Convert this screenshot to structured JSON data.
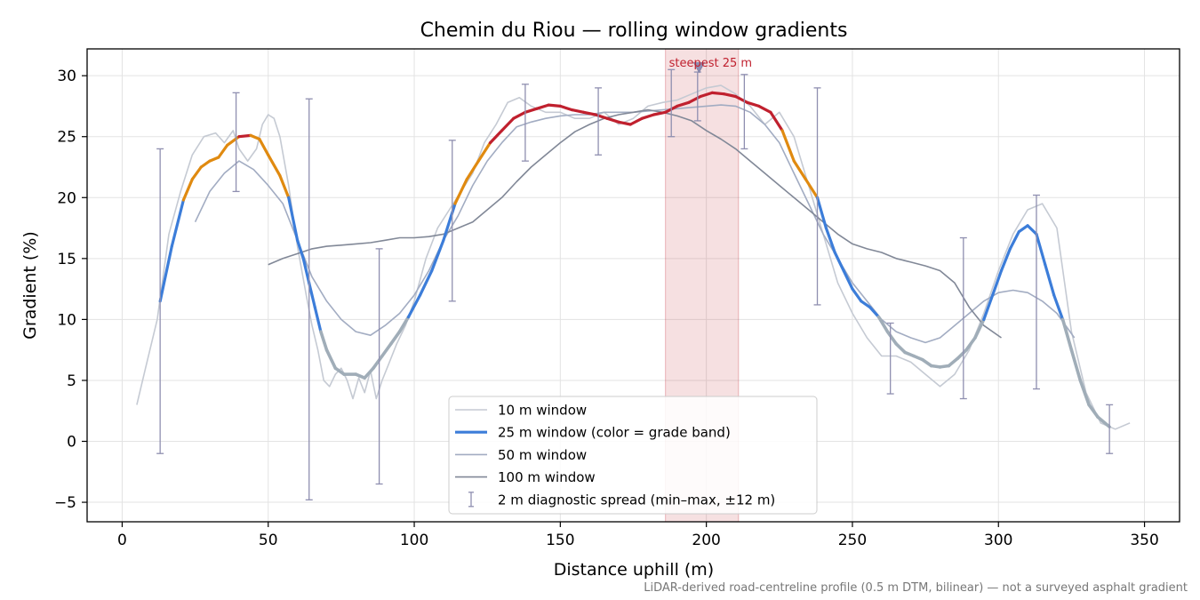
{
  "chart_data": {
    "type": "line",
    "title": "Chemin du Riou — rolling window gradients",
    "xlabel": "Distance uphill (m)",
    "ylabel": "Gradient (%)",
    "xlim": [
      -12,
      362
    ],
    "ylim": [
      -6.6,
      32.2
    ],
    "xticks": [
      0,
      50,
      100,
      150,
      200,
      250,
      300,
      350
    ],
    "yticks": [
      -5,
      0,
      5,
      10,
      15,
      20,
      25,
      30
    ],
    "grid": true,
    "legend_position": "bottom-center",
    "footnote": "LiDAR-derived road-centreline profile (0.5 m DTM, bilinear) — not a surveyed asphalt gradient",
    "annotation": {
      "label": "steepest 25 m",
      "x_range": [
        186,
        211
      ],
      "marker_x": 197.5,
      "marker_y": 30.7
    },
    "band_colors": {
      "<10%": "#a0adb8",
      "10-20%": "#3c7dd9",
      "20-25%": "#e08a10",
      ">=25%": "#c0202e"
    },
    "series": [
      {
        "name": "10 m window",
        "color": "#c5cad3",
        "x": [
          5,
          8,
          12,
          16,
          20,
          24,
          28,
          32,
          35,
          38,
          40,
          43,
          46,
          48,
          50,
          52,
          54,
          57,
          60,
          63,
          65,
          67,
          69,
          71,
          73,
          75,
          77,
          79,
          81,
          83,
          85,
          87,
          89,
          91,
          94,
          97,
          100,
          104,
          108,
          112,
          116,
          120,
          124,
          128,
          132,
          136,
          140,
          145,
          150,
          155,
          160,
          165,
          170,
          175,
          180,
          185,
          190,
          195,
          200,
          205,
          210,
          215,
          220,
          225,
          230,
          235,
          240,
          245,
          250,
          255,
          260,
          265,
          270,
          275,
          280,
          285,
          290,
          295,
          300,
          305,
          310,
          315,
          320,
          325,
          330,
          335,
          340,
          345
        ],
        "y": [
          3.0,
          6.0,
          10.0,
          17.0,
          20.5,
          23.5,
          25.0,
          25.3,
          24.5,
          25.5,
          24.0,
          23.0,
          24.0,
          26.0,
          26.8,
          26.5,
          25.0,
          21.0,
          16.0,
          12.0,
          9.5,
          7.5,
          5.0,
          4.5,
          5.5,
          6.0,
          5.0,
          3.5,
          5.2,
          4.0,
          5.8,
          3.5,
          5.0,
          6.2,
          8.0,
          9.5,
          11.5,
          15.0,
          17.5,
          19.0,
          20.5,
          22.0,
          24.5,
          26.0,
          27.8,
          28.2,
          27.5,
          27.0,
          27.0,
          26.5,
          26.5,
          27.0,
          26.0,
          26.5,
          27.5,
          27.8,
          28.0,
          28.5,
          29.0,
          29.2,
          28.5,
          27.5,
          26.0,
          27.0,
          25.0,
          21.0,
          17.0,
          13.0,
          10.5,
          8.5,
          7.0,
          7.0,
          6.5,
          5.5,
          4.5,
          5.5,
          7.5,
          10.5,
          14.0,
          17.0,
          19.0,
          19.5,
          17.5,
          9.0,
          4.0,
          1.5,
          1.0,
          1.5
        ]
      },
      {
        "name": "25 m window (color = grade band)",
        "x": [
          13,
          17,
          21,
          24,
          27,
          30,
          33,
          36,
          40,
          44,
          47,
          50,
          54,
          57,
          60,
          62,
          64,
          66,
          68,
          70,
          73,
          76,
          80,
          83,
          86,
          89,
          92,
          95,
          98,
          102,
          106,
          110,
          114,
          118,
          122,
          126,
          130,
          134,
          138,
          142,
          146,
          150,
          154,
          158,
          162,
          166,
          170,
          174,
          178,
          182,
          186,
          190,
          194,
          198,
          202,
          206,
          210,
          214,
          218,
          222,
          226,
          230,
          234,
          238,
          241,
          244,
          247,
          250,
          253,
          256,
          259,
          262,
          265,
          268,
          271,
          274,
          277,
          280,
          283,
          286,
          289,
          292,
          295,
          298,
          301,
          304,
          307,
          310,
          313,
          316,
          319,
          322,
          325,
          328,
          331,
          334,
          338
        ],
        "y": [
          11.5,
          16.0,
          19.8,
          21.5,
          22.5,
          23.0,
          23.3,
          24.3,
          25.0,
          25.1,
          24.8,
          23.5,
          21.8,
          20.0,
          16.5,
          15.0,
          13.0,
          11.0,
          9.0,
          7.5,
          6.0,
          5.5,
          5.5,
          5.2,
          6.0,
          7.0,
          8.0,
          9.0,
          10.2,
          12.0,
          14.0,
          16.5,
          19.5,
          21.5,
          23.0,
          24.5,
          25.5,
          26.5,
          27.0,
          27.3,
          27.6,
          27.5,
          27.2,
          27.0,
          26.8,
          26.5,
          26.2,
          26.0,
          26.5,
          26.8,
          27.0,
          27.5,
          27.8,
          28.3,
          28.6,
          28.5,
          28.3,
          27.8,
          27.5,
          27.0,
          25.5,
          23.0,
          21.5,
          20.0,
          17.5,
          15.5,
          14.0,
          12.5,
          11.5,
          11.0,
          10.2,
          9.0,
          8.0,
          7.3,
          7.0,
          6.7,
          6.2,
          6.1,
          6.2,
          6.8,
          7.5,
          8.5,
          10.0,
          12.0,
          14.0,
          15.8,
          17.2,
          17.7,
          17.0,
          14.5,
          12.0,
          10.0,
          7.5,
          5.0,
          3.0,
          2.0,
          1.2
        ]
      },
      {
        "name": "50 m window",
        "color": "#a2acc2",
        "x": [
          25,
          30,
          35,
          40,
          45,
          50,
          55,
          60,
          65,
          70,
          75,
          80,
          85,
          90,
          95,
          100,
          105,
          110,
          115,
          120,
          125,
          130,
          135,
          140,
          145,
          150,
          155,
          160,
          165,
          170,
          175,
          180,
          185,
          190,
          195,
          200,
          205,
          210,
          215,
          220,
          225,
          230,
          235,
          240,
          245,
          250,
          255,
          260,
          265,
          270,
          275,
          280,
          285,
          290,
          295,
          300,
          305,
          310,
          315,
          320,
          326
        ],
        "y": [
          18.0,
          20.5,
          22.0,
          23.0,
          22.3,
          21.0,
          19.5,
          16.5,
          13.5,
          11.5,
          10.0,
          9.0,
          8.7,
          9.5,
          10.5,
          12.0,
          14.0,
          16.5,
          18.5,
          21.0,
          23.0,
          24.5,
          25.8,
          26.2,
          26.5,
          26.7,
          26.8,
          26.8,
          27.0,
          27.0,
          27.0,
          27.1,
          27.2,
          27.3,
          27.4,
          27.5,
          27.6,
          27.5,
          27.0,
          26.0,
          24.5,
          22.0,
          19.5,
          17.0,
          15.0,
          13.0,
          11.5,
          10.0,
          9.0,
          8.5,
          8.1,
          8.5,
          9.5,
          10.5,
          11.5,
          12.2,
          12.4,
          12.2,
          11.5,
          10.5,
          8.5
        ]
      },
      {
        "name": "100 m window",
        "color": "#818897",
        "x": [
          50,
          55,
          60,
          65,
          70,
          75,
          80,
          85,
          90,
          95,
          100,
          105,
          110,
          115,
          120,
          125,
          130,
          135,
          140,
          145,
          150,
          155,
          160,
          165,
          170,
          175,
          180,
          185,
          190,
          195,
          200,
          205,
          210,
          215,
          220,
          225,
          230,
          235,
          240,
          245,
          250,
          255,
          260,
          265,
          270,
          275,
          280,
          285,
          290,
          295,
          301
        ],
        "y": [
          14.5,
          15.0,
          15.4,
          15.8,
          16.0,
          16.1,
          16.2,
          16.3,
          16.5,
          16.7,
          16.7,
          16.8,
          17.0,
          17.5,
          18.0,
          19.0,
          20.0,
          21.3,
          22.5,
          23.5,
          24.5,
          25.4,
          26.0,
          26.5,
          26.8,
          27.0,
          27.2,
          27.0,
          26.7,
          26.3,
          25.5,
          24.8,
          24.0,
          23.0,
          22.0,
          21.0,
          20.0,
          19.0,
          18.0,
          17.0,
          16.2,
          15.8,
          15.5,
          15.0,
          14.7,
          14.4,
          14.0,
          13.0,
          11.0,
          9.5,
          8.5
        ]
      },
      {
        "name": "2 m diagnostic spread (min–max, ±12 m)",
        "color": "#8f8fb0",
        "x": [
          13,
          39,
          64,
          88,
          113,
          138,
          163,
          188,
          197,
          213,
          238,
          263,
          288,
          313,
          338
        ],
        "y": [
          11.5,
          24.5,
          15.0,
          5.5,
          19.5,
          27.0,
          26.5,
          27.5,
          28.3,
          27.5,
          20.0,
          7.3,
          8.2,
          17.2,
          1.2
        ],
        "min": [
          -1.0,
          20.5,
          -4.8,
          -3.5,
          11.5,
          23.0,
          23.5,
          25.0,
          26.3,
          24.0,
          11.2,
          3.9,
          3.5,
          4.3,
          -1.0
        ],
        "max": [
          24.0,
          28.6,
          28.1,
          15.8,
          24.7,
          29.3,
          29.0,
          30.5,
          30.3,
          30.1,
          29.0,
          9.7,
          16.7,
          20.2,
          3.0
        ]
      }
    ]
  }
}
